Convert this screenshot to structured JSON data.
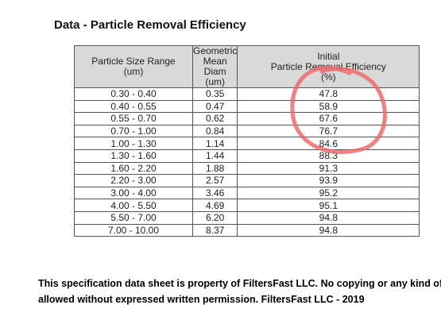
{
  "title": "Data - Particle Removal Efficiency",
  "table": {
    "header": [
      [
        "Particle Size Range",
        "(um)"
      ],
      [
        "Geometric",
        "Mean Diam",
        "(um)"
      ],
      [
        "Initial",
        "Particle Removal Efficiency",
        "(%)"
      ]
    ],
    "rows": [
      [
        "0.30 - 0.40",
        "0.35",
        "47.8"
      ],
      [
        "0.40 - 0.55",
        "0.47",
        "58.9"
      ],
      [
        "0.55 - 0.70",
        "0.62",
        "67.6"
      ],
      [
        "0.70 - 1.00",
        "0.84",
        "76.7"
      ],
      [
        "1.00 - 1.30",
        "1.14",
        "84.6"
      ],
      [
        "1.30 - 1.60",
        "1.44",
        "88.3"
      ],
      [
        "1.60 - 2.20",
        "1.88",
        "91.3"
      ],
      [
        "2.20 - 3.00",
        "2.57",
        "93.9"
      ],
      [
        "3.00 - 4.00",
        "3.46",
        "95.2"
      ],
      [
        "4.00 - 5.50",
        "4.69",
        "95.1"
      ],
      [
        "5.50 - 7.00",
        "6.20",
        "94.8"
      ],
      [
        "7.00 - 10.00",
        "8.37",
        "94.8"
      ]
    ]
  },
  "footer": [
    "This specification data sheet is property of FiltersFast LLC. No copying or any kind of",
    "allowed without expressed written permission. FiltersFast LLC - 2019"
  ]
}
